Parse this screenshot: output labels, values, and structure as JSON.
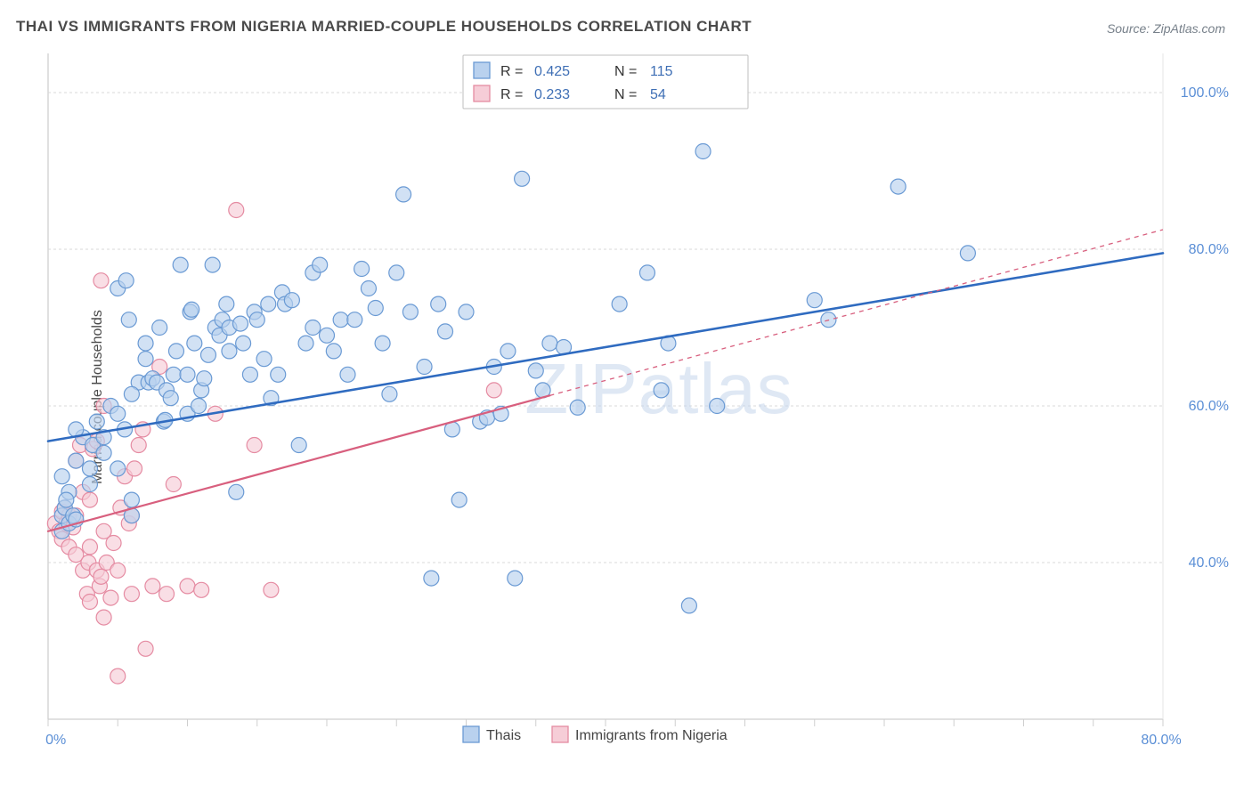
{
  "title": "THAI VS IMMIGRANTS FROM NIGERIA MARRIED-COUPLE HOUSEHOLDS CORRELATION CHART",
  "source_prefix": "Source: ",
  "source_name": "ZipAtlas.com",
  "ylabel": "Married-couple Households",
  "watermark": "ZIPatlas",
  "chart": {
    "type": "scatter",
    "xlim": [
      0,
      80
    ],
    "ylim": [
      20,
      105
    ],
    "x_ticks_minor": [
      0,
      5,
      10,
      15,
      20,
      25,
      30,
      35,
      40,
      45,
      50,
      55,
      60,
      65,
      70,
      75,
      80
    ],
    "x_tick_labels": [
      {
        "x": 0,
        "label": "0.0%"
      },
      {
        "x": 80,
        "label": "80.0%"
      }
    ],
    "y_grid": [
      40,
      60,
      80,
      100
    ],
    "y_tick_labels": [
      {
        "y": 40,
        "label": "40.0%"
      },
      {
        "y": 60,
        "label": "60.0%"
      },
      {
        "y": 80,
        "label": "80.0%"
      },
      {
        "y": 100,
        "label": "100.0%"
      }
    ],
    "background_color": "#ffffff",
    "grid_color": "#d8d8d8",
    "marker_radius": 8.5,
    "marker_stroke_width": 1.2,
    "series": [
      {
        "key": "thais",
        "name": "Thais",
        "fill": "#b9d1ee",
        "stroke": "#6a9ad4",
        "line_color": "#2f6bc0",
        "line_width": 2.6,
        "trend": {
          "y_at_x0": 55.5,
          "y_at_xmax": 79.5,
          "x_solid_max": 80,
          "x_dash_max": 80
        },
        "R_label": "R = ",
        "R": "0.425",
        "N_label": "N = ",
        "N": "115",
        "points": [
          [
            1,
            44
          ],
          [
            1,
            46
          ],
          [
            1.2,
            47
          ],
          [
            1.5,
            45
          ],
          [
            1.5,
            49
          ],
          [
            1,
            51
          ],
          [
            1.3,
            48
          ],
          [
            1.8,
            46
          ],
          [
            2,
            45.5
          ],
          [
            2,
            53
          ],
          [
            2.5,
            56
          ],
          [
            2,
            57
          ],
          [
            3,
            50
          ],
          [
            3,
            52
          ],
          [
            3.2,
            55
          ],
          [
            3.5,
            58
          ],
          [
            4,
            54
          ],
          [
            4,
            56
          ],
          [
            4.5,
            60
          ],
          [
            5,
            52
          ],
          [
            5,
            59
          ],
          [
            5.5,
            57
          ],
          [
            5,
            75
          ],
          [
            5.6,
            76
          ],
          [
            5.8,
            71
          ],
          [
            6,
            48
          ],
          [
            6,
            46
          ],
          [
            6.5,
            63
          ],
          [
            6,
            61.5
          ],
          [
            7,
            68
          ],
          [
            7,
            66
          ],
          [
            7.2,
            63
          ],
          [
            7.5,
            63.5
          ],
          [
            7.8,
            63
          ],
          [
            8,
            70
          ],
          [
            8.3,
            58
          ],
          [
            8.4,
            58.2
          ],
          [
            8.5,
            62
          ],
          [
            8.8,
            61
          ],
          [
            9,
            64
          ],
          [
            9.2,
            67
          ],
          [
            9.5,
            78
          ],
          [
            10,
            59
          ],
          [
            10,
            64
          ],
          [
            10.2,
            72
          ],
          [
            10.3,
            72.3
          ],
          [
            10.5,
            68
          ],
          [
            10.8,
            60
          ],
          [
            11,
            62
          ],
          [
            11.2,
            63.5
          ],
          [
            11.5,
            66.5
          ],
          [
            11.8,
            78
          ],
          [
            12,
            70
          ],
          [
            12.3,
            69
          ],
          [
            12.5,
            71
          ],
          [
            12.8,
            73
          ],
          [
            13,
            70
          ],
          [
            13,
            67
          ],
          [
            13.5,
            49
          ],
          [
            13.8,
            70.5
          ],
          [
            14,
            68
          ],
          [
            14.5,
            64
          ],
          [
            14.8,
            72
          ],
          [
            15,
            71
          ],
          [
            15.5,
            66
          ],
          [
            15.8,
            73
          ],
          [
            16,
            61
          ],
          [
            16.5,
            64
          ],
          [
            16.8,
            74.5
          ],
          [
            17,
            73
          ],
          [
            17.5,
            73.5
          ],
          [
            18,
            55
          ],
          [
            18.5,
            68
          ],
          [
            19,
            77
          ],
          [
            19,
            70
          ],
          [
            19.5,
            78
          ],
          [
            20,
            69
          ],
          [
            20.5,
            67
          ],
          [
            21,
            71
          ],
          [
            21.5,
            64
          ],
          [
            22,
            71
          ],
          [
            22.5,
            77.5
          ],
          [
            23,
            75
          ],
          [
            23.5,
            72.5
          ],
          [
            24,
            68
          ],
          [
            24.5,
            61.5
          ],
          [
            25,
            77
          ],
          [
            25.5,
            87
          ],
          [
            26,
            72
          ],
          [
            27,
            65
          ],
          [
            27.5,
            38
          ],
          [
            28,
            73
          ],
          [
            28.5,
            69.5
          ],
          [
            29,
            57
          ],
          [
            29.5,
            48
          ],
          [
            30,
            72
          ],
          [
            31,
            58
          ],
          [
            31.5,
            58.5
          ],
          [
            32,
            65
          ],
          [
            32.5,
            59
          ],
          [
            33,
            67
          ],
          [
            33.5,
            38
          ],
          [
            34,
            89
          ],
          [
            35,
            64.5
          ],
          [
            35.5,
            62
          ],
          [
            36,
            68
          ],
          [
            37,
            67.5
          ],
          [
            38,
            59.8
          ],
          [
            41,
            73
          ],
          [
            43,
            77
          ],
          [
            44,
            62
          ],
          [
            44.5,
            68
          ],
          [
            46,
            34.5
          ],
          [
            47,
            92.5
          ],
          [
            48,
            60
          ],
          [
            55,
            73.5
          ],
          [
            56,
            71
          ],
          [
            61,
            88
          ],
          [
            66,
            79.5
          ]
        ]
      },
      {
        "key": "nigeria",
        "name": "Immigrants from Nigeria",
        "fill": "#f6cdd7",
        "stroke": "#e58ba2",
        "line_color": "#d85f7e",
        "line_width": 2.2,
        "trend": {
          "y_at_x0": 44,
          "y_at_xmax": 82.5,
          "x_solid_max": 36,
          "x_dash_max": 80
        },
        "R_label": "R = ",
        "R": "0.233",
        "N_label": "N = ",
        "N": "54",
        "points": [
          [
            0.5,
            45
          ],
          [
            0.8,
            44
          ],
          [
            1,
            46.5
          ],
          [
            1,
            43
          ],
          [
            1.2,
            47
          ],
          [
            1.3,
            45
          ],
          [
            1.5,
            42
          ],
          [
            1.5,
            46
          ],
          [
            1.8,
            44.5
          ],
          [
            2,
            41
          ],
          [
            2,
            46
          ],
          [
            2,
            53
          ],
          [
            2.3,
            55
          ],
          [
            2.5,
            39
          ],
          [
            2.5,
            49
          ],
          [
            2.8,
            36
          ],
          [
            2.9,
            40
          ],
          [
            3,
            35
          ],
          [
            3,
            42
          ],
          [
            3,
            48
          ],
          [
            3.2,
            54.5
          ],
          [
            3.5,
            39
          ],
          [
            3.5,
            55.5
          ],
          [
            3.7,
            37
          ],
          [
            3.8,
            38.2
          ],
          [
            3.8,
            76
          ],
          [
            4,
            44
          ],
          [
            4,
            33
          ],
          [
            4,
            60
          ],
          [
            4.2,
            40
          ],
          [
            4.5,
            35.5
          ],
          [
            4.7,
            42.5
          ],
          [
            5,
            39
          ],
          [
            5,
            25.5
          ],
          [
            5.2,
            47
          ],
          [
            5.5,
            51
          ],
          [
            5.8,
            45
          ],
          [
            6,
            36
          ],
          [
            6,
            46
          ],
          [
            6.2,
            52
          ],
          [
            6.5,
            55
          ],
          [
            6.8,
            57
          ],
          [
            7,
            29
          ],
          [
            7.5,
            37
          ],
          [
            8,
            65
          ],
          [
            8.5,
            36
          ],
          [
            9,
            50
          ],
          [
            10,
            37
          ],
          [
            11,
            36.5
          ],
          [
            12,
            59
          ],
          [
            13.5,
            85
          ],
          [
            14.8,
            55
          ],
          [
            16,
            36.5
          ],
          [
            32,
            62
          ]
        ]
      }
    ]
  }
}
